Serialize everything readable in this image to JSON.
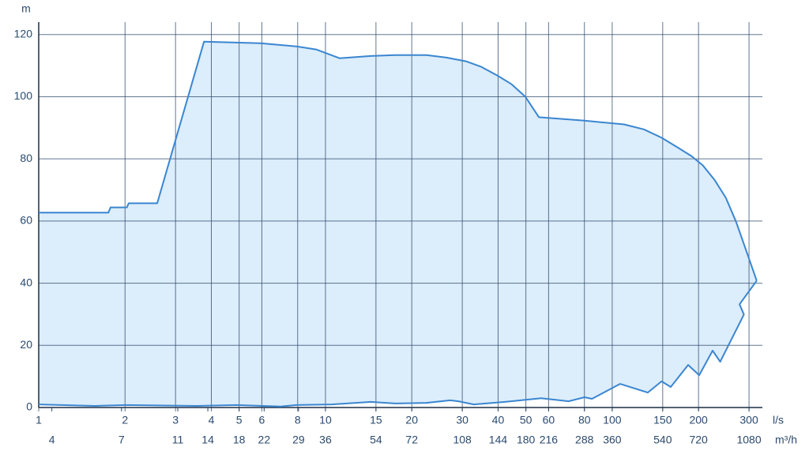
{
  "chart_data": {
    "type": "range-area",
    "y_unit": "m",
    "x_unit": "l/s",
    "x2_unit": "m³/h",
    "xscale": "log",
    "grid": true,
    "xlim": [
      1,
      334
    ],
    "x2lim": [
      3.6,
      1202.4
    ],
    "ylim": [
      0,
      124
    ],
    "xticks": [
      1,
      2,
      3,
      4,
      5,
      6,
      8,
      10,
      15,
      20,
      30,
      40,
      50,
      60,
      80,
      100,
      150,
      200,
      300
    ],
    "x2ticks": [
      4,
      7,
      11,
      14,
      18,
      22,
      29,
      36,
      54,
      72,
      108,
      144,
      180,
      216,
      288,
      360,
      540,
      720,
      1080
    ],
    "yticks": [
      0,
      20,
      40,
      60,
      80,
      100,
      120
    ],
    "fill_color": "#dcedfb",
    "series": [
      {
        "color": "#3a86d0",
        "x": [
          1,
          1.75,
          1.78,
          2.03,
          2.06,
          2.59,
          3.77,
          5.94,
          7.91,
          9.27,
          11.2,
          14.4,
          17.5,
          22.5,
          26.4,
          30.9,
          35,
          39.8,
          44.6,
          49.8,
          55.5,
          80.1,
          110,
          129,
          148.7,
          169,
          189,
          207,
          228,
          249,
          270,
          294,
          319
        ],
        "values": [
          62.7,
          62.7,
          64.4,
          64.4,
          65.7,
          65.7,
          117.7,
          117.2,
          116.2,
          115.2,
          112.4,
          113.1,
          113.4,
          113.4,
          112.6,
          111.4,
          109.6,
          106.8,
          104,
          100,
          93.4,
          92.3,
          91.1,
          89.5,
          86.8,
          83.7,
          80.9,
          77.9,
          73.1,
          67.5,
          59.9,
          50.2,
          40.8
        ]
      },
      {
        "color": "#3a86d0",
        "x": [
          1,
          1.57,
          2.02,
          3.57,
          4.91,
          6.97,
          7.91,
          10.5,
          14.4,
          17.5,
          22.5,
          27.2,
          29.1,
          32.9,
          42.3,
          56.5,
          70.5,
          80.1,
          85,
          106.5,
          133,
          148.7,
          160,
          184,
          201,
          224,
          238,
          288,
          278,
          319
        ],
        "values": [
          1,
          0.5,
          0.8,
          0.5,
          0.8,
          0.3,
          0.8,
          1,
          1.8,
          1.3,
          1.5,
          2.3,
          2,
          1,
          1.8,
          3,
          2,
          3.3,
          2.8,
          7.6,
          4.8,
          8.4,
          6.6,
          13.7,
          10.4,
          18.3,
          14.7,
          29.9,
          33.2,
          40.8
        ]
      }
    ]
  }
}
